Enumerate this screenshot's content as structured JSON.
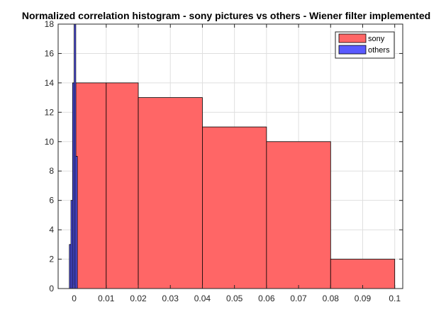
{
  "chart_data": {
    "type": "bar",
    "title": "Normalized correlation histogram - sony pictures vs others - Wiener filter implemented",
    "xlabel": "",
    "ylabel": "",
    "xlim": [
      -0.005,
      0.1025
    ],
    "ylim": [
      0,
      18
    ],
    "grid": true,
    "legend_position": "top-right",
    "x_ticks": [
      0,
      0.01,
      0.02,
      0.03,
      0.04,
      0.05,
      0.06,
      0.07,
      0.08,
      0.09,
      0.1
    ],
    "x_tick_labels": [
      "0",
      "0.01",
      "0.02",
      "0.03",
      "0.04",
      "0.05",
      "0.06",
      "0.07",
      "0.08",
      "0.09",
      "0.1"
    ],
    "y_ticks": [
      0,
      2,
      4,
      6,
      8,
      10,
      12,
      14,
      16,
      18
    ],
    "y_tick_labels": [
      "0",
      "2",
      "4",
      "6",
      "8",
      "10",
      "12",
      "14",
      "16",
      "18"
    ],
    "series": [
      {
        "name": "sony",
        "color": "#ff6666",
        "bins": [
          {
            "x0": 0.0005,
            "x1": 0.01,
            "value": 14
          },
          {
            "x0": 0.01,
            "x1": 0.02,
            "value": 14
          },
          {
            "x0": 0.02,
            "x1": 0.04,
            "value": 13
          },
          {
            "x0": 0.04,
            "x1": 0.06,
            "value": 11
          },
          {
            "x0": 0.06,
            "x1": 0.08,
            "value": 10
          },
          {
            "x0": 0.08,
            "x1": 0.1,
            "value": 2
          }
        ]
      },
      {
        "name": "others",
        "color": "#5a5aff",
        "bins": [
          {
            "x0": -0.0015,
            "x1": -0.001,
            "value": 3
          },
          {
            "x0": -0.001,
            "x1": -0.0005,
            "value": 6
          },
          {
            "x0": -0.0005,
            "x1": 0.0,
            "value": 14
          },
          {
            "x0": 0.0,
            "x1": 0.0005,
            "value": 18
          },
          {
            "x0": 0.0005,
            "x1": 0.001,
            "value": 9
          }
        ]
      }
    ]
  }
}
